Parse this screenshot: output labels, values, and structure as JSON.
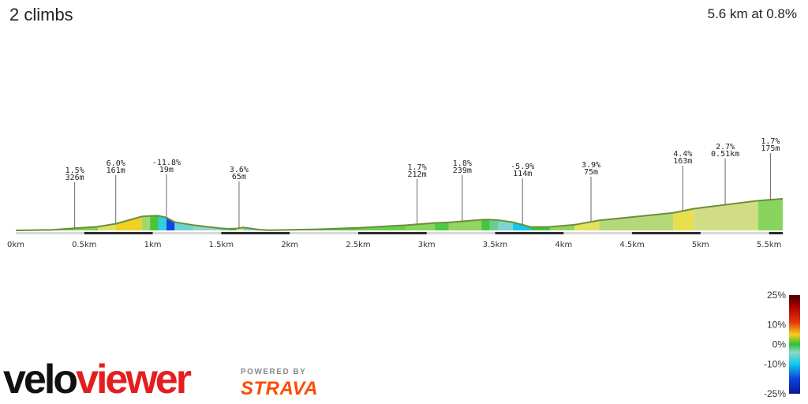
{
  "header": {
    "title": "2 climbs",
    "summary": "5.6 km at 0.8%"
  },
  "colors": {
    "baseline": "#2b2b2b",
    "outline": "#6b8f3a",
    "brand_strava": "#fc4c02",
    "brand_vv": "#e41e1e"
  },
  "chart_data": {
    "type": "area",
    "title": "",
    "xlabel": "",
    "ylabel": "",
    "xlim": [
      0,
      5.6
    ],
    "x_unit": "km",
    "x_ticks": [
      {
        "value": 0,
        "label": "0km"
      },
      {
        "value": 0.5,
        "label": "0.5km"
      },
      {
        "value": 1,
        "label": "1km"
      },
      {
        "value": 1.5,
        "label": "1.5km"
      },
      {
        "value": 2,
        "label": "2km"
      },
      {
        "value": 2.5,
        "label": "2.5km"
      },
      {
        "value": 3,
        "label": "3km"
      },
      {
        "value": 3.5,
        "label": "3.5km"
      },
      {
        "value": 4,
        "label": "4km"
      },
      {
        "value": 4.5,
        "label": "4.5km"
      },
      {
        "value": 5,
        "label": "5km"
      },
      {
        "value": 5.5,
        "label": "5.5km"
      }
    ],
    "segments": [
      {
        "from": 0.0,
        "to": 0.27,
        "grade": 0.3
      },
      {
        "from": 0.27,
        "to": 0.43,
        "grade": 1.0
      },
      {
        "from": 0.43,
        "to": 0.6,
        "grade": 1.5
      },
      {
        "from": 0.6,
        "to": 0.73,
        "grade": 3.5
      },
      {
        "from": 0.73,
        "to": 0.92,
        "grade": 6.0
      },
      {
        "from": 0.92,
        "to": 0.98,
        "grade": 2.0
      },
      {
        "from": 0.98,
        "to": 1.04,
        "grade": 0.5
      },
      {
        "from": 1.04,
        "to": 1.1,
        "grade": -5.0
      },
      {
        "from": 1.1,
        "to": 1.16,
        "grade": -11.8
      },
      {
        "from": 1.16,
        "to": 1.3,
        "grade": -3.5
      },
      {
        "from": 1.3,
        "to": 1.5,
        "grade": -2.5
      },
      {
        "from": 1.5,
        "to": 1.55,
        "grade": -1.5
      },
      {
        "from": 1.55,
        "to": 1.61,
        "grade": 0.5
      },
      {
        "from": 1.61,
        "to": 1.66,
        "grade": 3.6
      },
      {
        "from": 1.66,
        "to": 1.78,
        "grade": -3.0
      },
      {
        "from": 1.78,
        "to": 1.85,
        "grade": -1.2
      },
      {
        "from": 1.85,
        "to": 2.2,
        "grade": 0.4
      },
      {
        "from": 2.2,
        "to": 2.5,
        "grade": 0.8
      },
      {
        "from": 2.5,
        "to": 2.85,
        "grade": 1.2
      },
      {
        "from": 2.85,
        "to": 3.06,
        "grade": 1.7
      },
      {
        "from": 3.06,
        "to": 3.16,
        "grade": 0.7
      },
      {
        "from": 3.16,
        "to": 3.4,
        "grade": 1.8
      },
      {
        "from": 3.4,
        "to": 3.46,
        "grade": 0.5
      },
      {
        "from": 3.46,
        "to": 3.52,
        "grade": -1.5
      },
      {
        "from": 3.52,
        "to": 3.63,
        "grade": -3.0
      },
      {
        "from": 3.63,
        "to": 3.76,
        "grade": -5.9
      },
      {
        "from": 3.76,
        "to": 3.9,
        "grade": 0.3
      },
      {
        "from": 3.9,
        "to": 4.08,
        "grade": 1.8
      },
      {
        "from": 4.08,
        "to": 4.26,
        "grade": 3.9
      },
      {
        "from": 4.26,
        "to": 4.8,
        "grade": 2.2
      },
      {
        "from": 4.8,
        "to": 4.95,
        "grade": 4.4
      },
      {
        "from": 4.95,
        "to": 5.42,
        "grade": 2.7
      },
      {
        "from": 5.42,
        "to": 5.6,
        "grade": 1.7
      }
    ],
    "profile": [
      [
        0.0,
        0
      ],
      [
        0.27,
        1
      ],
      [
        0.43,
        3.5
      ],
      [
        0.6,
        6
      ],
      [
        0.73,
        10.5
      ],
      [
        0.92,
        22
      ],
      [
        0.98,
        23
      ],
      [
        1.04,
        23.3
      ],
      [
        1.1,
        20.3
      ],
      [
        1.16,
        13.2
      ],
      [
        1.3,
        8.3
      ],
      [
        1.5,
        3.3
      ],
      [
        1.55,
        2.6
      ],
      [
        1.61,
        2.9
      ],
      [
        1.66,
        4.7
      ],
      [
        1.78,
        1.1
      ],
      [
        1.85,
        0.3
      ],
      [
        2.2,
        1.7
      ],
      [
        2.5,
        4.1
      ],
      [
        2.85,
        8.3
      ],
      [
        3.06,
        11.9
      ],
      [
        3.16,
        12.6
      ],
      [
        3.4,
        16.9
      ],
      [
        3.46,
        17.2
      ],
      [
        3.52,
        16.3
      ],
      [
        3.63,
        13
      ],
      [
        3.76,
        5.3
      ],
      [
        3.9,
        5.7
      ],
      [
        4.08,
        8.9
      ],
      [
        4.26,
        15.9
      ],
      [
        4.8,
        27.8
      ],
      [
        4.95,
        34.4
      ],
      [
        5.42,
        47.1
      ],
      [
        5.6,
        50.2
      ]
    ],
    "annotations": [
      {
        "km": 0.43,
        "grade": "1.5%",
        "length": "326m",
        "label_y": 228
      },
      {
        "km": 0.73,
        "grade": "6.0%",
        "length": "161m",
        "label_y": 219
      },
      {
        "km": 1.1,
        "grade": "-11.8%",
        "length": "19m",
        "label_y": 218
      },
      {
        "km": 1.63,
        "grade": "3.6%",
        "length": "65m",
        "label_y": 227
      },
      {
        "km": 2.93,
        "grade": "1.7%",
        "length": "212m",
        "label_y": 224
      },
      {
        "km": 3.26,
        "grade": "1.8%",
        "length": "239m",
        "label_y": 219
      },
      {
        "km": 3.7,
        "grade": "-5.9%",
        "length": "114m",
        "label_y": 223
      },
      {
        "km": 4.2,
        "grade": "3.9%",
        "length": "75m",
        "label_y": 221
      },
      {
        "km": 4.87,
        "grade": "4.4%",
        "length": "163m",
        "label_y": 207
      },
      {
        "km": 5.18,
        "grade": "2.7%",
        "length": "0.51km",
        "label_y": 198
      },
      {
        "km": 5.51,
        "grade": "1.7%",
        "length": "175m",
        "label_y": 191
      }
    ],
    "climb_bars": [
      [
        0.5,
        1.0
      ],
      [
        1.5,
        2.0
      ],
      [
        2.5,
        3.0
      ],
      [
        3.5,
        4.0
      ],
      [
        4.5,
        5.0
      ],
      [
        5.5,
        5.6
      ]
    ],
    "legend": {
      "title": "",
      "labels": [
        {
          "value": 25,
          "label": "25%"
        },
        {
          "value": 10,
          "label": "10%"
        },
        {
          "value": 0,
          "label": "0%"
        },
        {
          "value": -10,
          "label": "-10%"
        },
        {
          "value": -25,
          "label": "-25%"
        }
      ]
    }
  },
  "branding": {
    "logo_text": "veloviewer",
    "powered_by": "POWERED BY",
    "strava": "STRAVA"
  }
}
